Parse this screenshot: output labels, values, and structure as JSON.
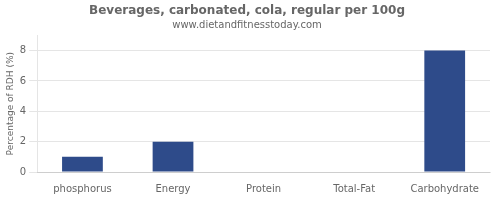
{
  "chart_data": {
    "type": "bar",
    "title": "Beverages, carbonated, cola, regular per 100g",
    "subtitle": "www.dietandfitnesstoday.com",
    "categories": [
      "phosphorus",
      "Energy",
      "Protein",
      "Total-Fat",
      "Carbohydrate"
    ],
    "values": [
      1.0,
      2.0,
      0.0,
      0.0,
      8.0
    ],
    "color": "#2e4b8a",
    "ylabel": "Percentage of RDH (%)",
    "ylim": [
      0,
      9
    ],
    "yticks": [
      0,
      2,
      4,
      6,
      8
    ],
    "grid": true
  }
}
